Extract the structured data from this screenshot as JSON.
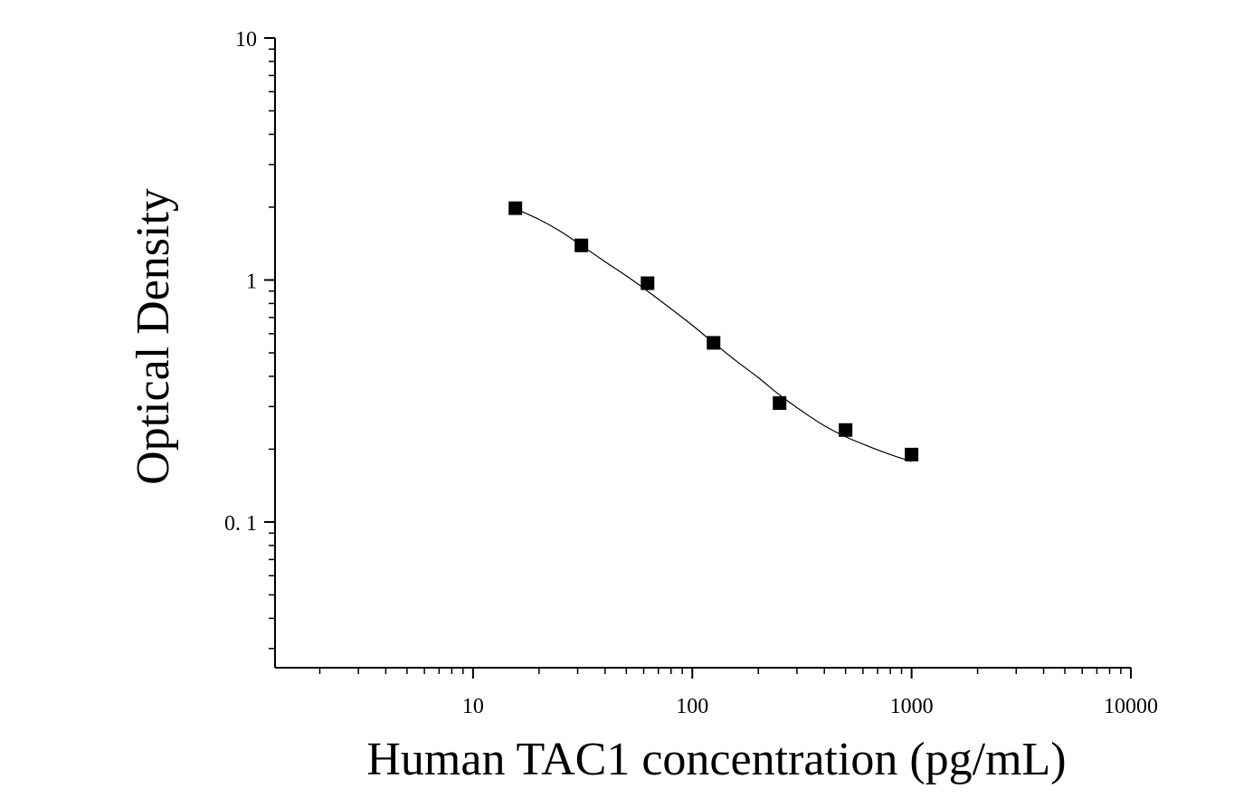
{
  "chart_data": {
    "type": "scatter",
    "title": "",
    "xlabel": "Human TAC1 concentration (pg/mL)",
    "ylabel": "Optical Density",
    "x_scale": "log",
    "y_scale": "log",
    "xlim": [
      1.25,
      10000
    ],
    "ylim": [
      0.025,
      10
    ],
    "x_ticks": [
      10,
      100,
      1000,
      10000
    ],
    "x_tick_labels": [
      "10",
      "100",
      "1000",
      "10000"
    ],
    "y_ticks": [
      0.1,
      1,
      10
    ],
    "y_tick_labels": [
      "0. 1",
      "1",
      "10"
    ],
    "grid": false,
    "legend": "none",
    "series": [
      {
        "marker": "square",
        "color": "#000000",
        "x": [
          15.6,
          31.2,
          62.5,
          125,
          250,
          500,
          1000
        ],
        "y": [
          1.98,
          1.39,
          0.97,
          0.55,
          0.31,
          0.24,
          0.19
        ]
      }
    ],
    "fit_curve": {
      "type": "4PL",
      "color": "#000000",
      "x": [
        15.6,
        20,
        25,
        31.2,
        40,
        50,
        62.5,
        80,
        100,
        125,
        160,
        200,
        250,
        320,
        400,
        500,
        640,
        800,
        1000
      ],
      "y": [
        1.97,
        1.78,
        1.59,
        1.39,
        1.19,
        1.04,
        0.9,
        0.76,
        0.65,
        0.55,
        0.46,
        0.395,
        0.335,
        0.285,
        0.25,
        0.225,
        0.205,
        0.19,
        0.178
      ]
    }
  }
}
